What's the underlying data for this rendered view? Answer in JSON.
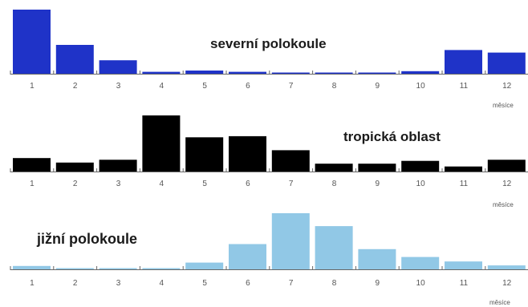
{
  "chart_data": [
    {
      "type": "bar",
      "title": "severní polokoule",
      "categories": [
        "1",
        "2",
        "3",
        "4",
        "5",
        "6",
        "7",
        "8",
        "9",
        "10",
        "11",
        "12"
      ],
      "values": [
        100,
        45,
        21,
        3,
        5,
        3,
        1,
        1,
        1,
        4,
        37,
        33
      ],
      "xlabel": "měsíce",
      "color": "#1f33c8"
    },
    {
      "type": "bar",
      "title": "tropická oblast",
      "categories": [
        "1",
        "2",
        "3",
        "4",
        "5",
        "6",
        "7",
        "8",
        "9",
        "10",
        "11",
        "12"
      ],
      "values": [
        24,
        16,
        21,
        100,
        61,
        63,
        38,
        14,
        14,
        19,
        9,
        21
      ],
      "xlabel": "měsíce",
      "color": "#000000"
    },
    {
      "type": "bar",
      "title": "jižní polokoule",
      "categories": [
        "1",
        "2",
        "3",
        "4",
        "5",
        "6",
        "7",
        "8",
        "9",
        "10",
        "11",
        "12"
      ],
      "values": [
        6,
        0,
        0,
        0,
        12,
        45,
        100,
        77,
        36,
        22,
        14,
        7
      ],
      "xlabel": "měsíce",
      "color": "#91c8e6"
    }
  ]
}
